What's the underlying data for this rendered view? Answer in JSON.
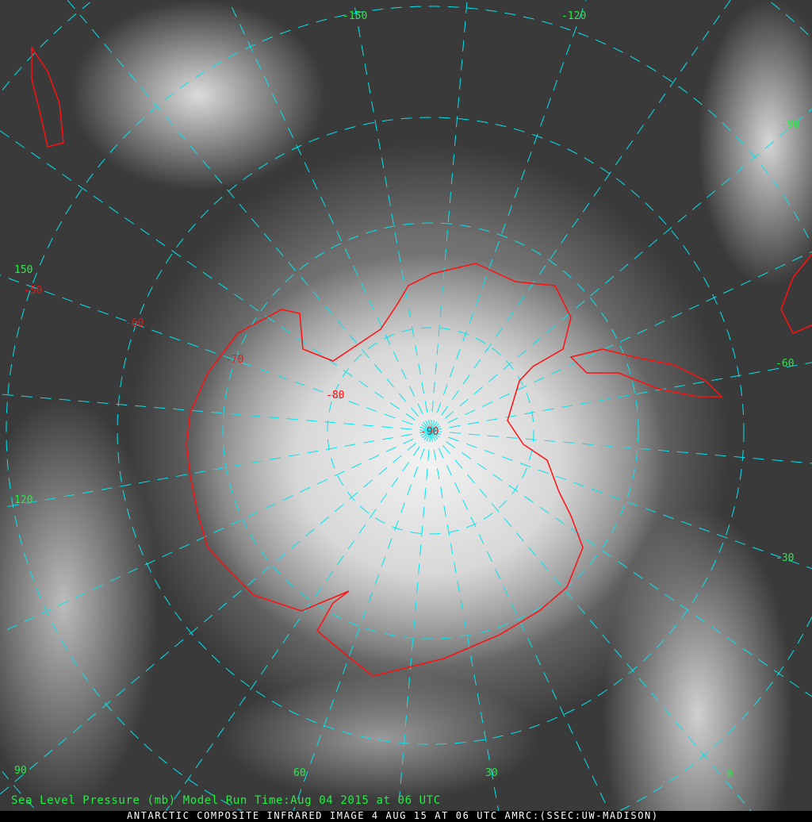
{
  "caption": "ANTARCTIC COMPOSITE INFRARED IMAGE 4 AUG 15 AT 06 UTC AMRC:(SSEC:UW-MADISON)",
  "model_run_text": "Sea Level Pressure (mb) Model Run Time:Aug 04 2015 at 06 UTC",
  "colors": {
    "grid": "#00e5ee",
    "coastline": "#ff1010",
    "longitude_labels": "#22ee44",
    "latitude_labels": "#ff1010"
  },
  "longitude_labels": [
    "-150",
    "-120",
    "-90",
    "-60",
    "-30",
    "0",
    "30",
    "60",
    "90",
    "120",
    "150"
  ],
  "latitude_labels": [
    "-50",
    "-60",
    "-70",
    "-80",
    "-90"
  ]
}
